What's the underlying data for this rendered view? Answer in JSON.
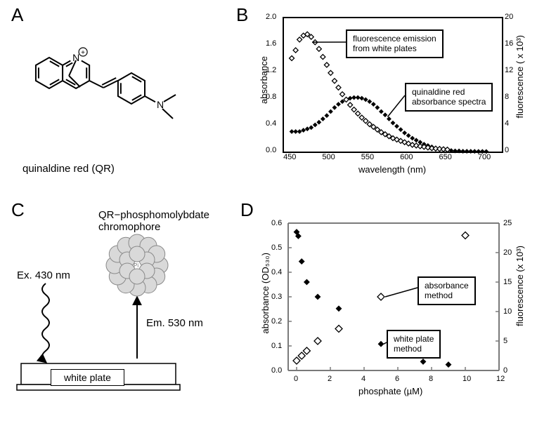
{
  "panelA": {
    "label": "A",
    "caption": "quinaldine red (QR)"
  },
  "panelB": {
    "label": "B",
    "chart": {
      "type": "line",
      "xlabel": "wavelength (nm)",
      "ylabel_left": "absorbance",
      "ylabel_right": "fluorescence ( x 10³)",
      "xlim": [
        440,
        720
      ],
      "xtick_start": 450,
      "xtick_step": 50,
      "xtick_end": 700,
      "ylim_left": [
        0,
        2.0
      ],
      "ytick_left_step": 0.4,
      "ylim_right": [
        0,
        20
      ],
      "ytick_right_step": 4,
      "background_color": "#ffffff",
      "axis_color": "#000000",
      "fluor_series": {
        "marker": "diamond-open",
        "marker_size": 7,
        "color": "#000000",
        "data": [
          [
            450,
            14.0
          ],
          [
            455,
            15.2
          ],
          [
            460,
            16.8
          ],
          [
            465,
            17.4
          ],
          [
            470,
            17.6
          ],
          [
            475,
            17.2
          ],
          [
            480,
            16.4
          ],
          [
            485,
            15.4
          ],
          [
            490,
            14.2
          ],
          [
            495,
            13.0
          ],
          [
            500,
            11.8
          ],
          [
            505,
            10.6
          ],
          [
            510,
            9.6
          ],
          [
            515,
            8.6
          ],
          [
            520,
            7.8
          ],
          [
            525,
            7.0
          ],
          [
            530,
            6.3
          ],
          [
            535,
            5.7
          ],
          [
            540,
            5.1
          ],
          [
            545,
            4.6
          ],
          [
            550,
            4.1
          ],
          [
            555,
            3.7
          ],
          [
            560,
            3.3
          ],
          [
            565,
            2.9
          ],
          [
            570,
            2.6
          ],
          [
            575,
            2.3
          ],
          [
            580,
            2.0
          ],
          [
            585,
            1.8
          ],
          [
            590,
            1.6
          ],
          [
            595,
            1.4
          ],
          [
            600,
            1.2
          ],
          [
            605,
            1.0
          ],
          [
            610,
            0.9
          ],
          [
            615,
            0.8
          ],
          [
            620,
            0.7
          ],
          [
            625,
            0.6
          ],
          [
            630,
            0.5
          ],
          [
            635,
            0.45
          ],
          [
            640,
            0.4
          ],
          [
            645,
            0.35
          ],
          [
            650,
            0.3
          ]
        ]
      },
      "abs_series": {
        "marker": "diamond-filled",
        "marker_size": 5,
        "color": "#000000",
        "data": [
          [
            450,
            0.3
          ],
          [
            455,
            0.3
          ],
          [
            460,
            0.3
          ],
          [
            465,
            0.32
          ],
          [
            470,
            0.34
          ],
          [
            475,
            0.36
          ],
          [
            480,
            0.4
          ],
          [
            485,
            0.44
          ],
          [
            490,
            0.49
          ],
          [
            495,
            0.54
          ],
          [
            500,
            0.6
          ],
          [
            505,
            0.66
          ],
          [
            510,
            0.71
          ],
          [
            515,
            0.75
          ],
          [
            520,
            0.78
          ],
          [
            525,
            0.8
          ],
          [
            530,
            0.81
          ],
          [
            535,
            0.81
          ],
          [
            540,
            0.8
          ],
          [
            545,
            0.78
          ],
          [
            550,
            0.75
          ],
          [
            555,
            0.71
          ],
          [
            560,
            0.66
          ],
          [
            565,
            0.6
          ],
          [
            570,
            0.55
          ],
          [
            575,
            0.49
          ],
          [
            580,
            0.43
          ],
          [
            585,
            0.38
          ],
          [
            590,
            0.33
          ],
          [
            595,
            0.28
          ],
          [
            600,
            0.24
          ],
          [
            605,
            0.2
          ],
          [
            610,
            0.17
          ],
          [
            615,
            0.14
          ],
          [
            620,
            0.11
          ],
          [
            625,
            0.09
          ],
          [
            630,
            0.07
          ],
          [
            635,
            0.05
          ],
          [
            640,
            0.04
          ],
          [
            645,
            0.03
          ],
          [
            650,
            0.02
          ],
          [
            655,
            0.015
          ],
          [
            660,
            0.01
          ],
          [
            665,
            0.01
          ],
          [
            670,
            0.005
          ],
          [
            675,
            0.005
          ],
          [
            680,
            0.004
          ],
          [
            685,
            0.003
          ],
          [
            690,
            0.002
          ],
          [
            695,
            0.002
          ],
          [
            700,
            0.001
          ]
        ]
      },
      "annotations": [
        {
          "text": "fluorescence emission\nfrom white plates",
          "target": "fluor",
          "target_wl": 488
        },
        {
          "text": "quinaldine red\nabsorbance spectra",
          "target": "abs",
          "target_wl": 580
        }
      ]
    }
  },
  "panelC": {
    "label": "C",
    "ex_label": "Ex. 430 nm",
    "em_label": "Em. 530 nm",
    "complex_label": "QR−phosphomolybdate\nchromophore",
    "plate_label": "white plate",
    "sphere_fill": "#d9d9d9",
    "sphere_stroke": "#8a8a8a",
    "center_label": "Pi"
  },
  "panelD": {
    "label": "D",
    "chart": {
      "type": "scatter",
      "xlabel": "phosphate (µM)",
      "ylabel_left": "absorbance (OD₅₃₀)",
      "ylabel_right": "fluorescence (x 10³)",
      "xlim": [
        -0.5,
        12
      ],
      "xtick_step": 2,
      "ylim_left": [
        0,
        0.6
      ],
      "ytick_left_step": 0.1,
      "ylim_right": [
        0,
        25
      ],
      "ytick_right_step": 5,
      "axis_color": "#7a7a7a",
      "background_color": "#ffffff",
      "abs_series": {
        "marker": "diamond-open",
        "marker_size": 10,
        "color": "#000000",
        "data": [
          [
            0,
            0.04
          ],
          [
            0.3,
            0.06
          ],
          [
            0.6,
            0.08
          ],
          [
            1.25,
            0.12
          ],
          [
            2.5,
            0.17
          ],
          [
            5,
            0.3
          ],
          [
            10,
            0.55
          ]
        ]
      },
      "fluor_series": {
        "marker": "diamond-filled",
        "marker_size": 7,
        "color": "#000000",
        "data": [
          [
            0,
            23.5
          ],
          [
            0.1,
            22.8
          ],
          [
            0.3,
            18.5
          ],
          [
            0.6,
            15.0
          ],
          [
            1.25,
            12.5
          ],
          [
            2.5,
            10.5
          ],
          [
            5,
            4.5
          ],
          [
            7.5,
            1.5
          ],
          [
            9,
            1.0
          ]
        ]
      },
      "annotations": [
        {
          "text": "absorbance\nmethod",
          "target": "abs"
        },
        {
          "text": "white plate\nmethod",
          "target": "fluor"
        }
      ]
    }
  }
}
